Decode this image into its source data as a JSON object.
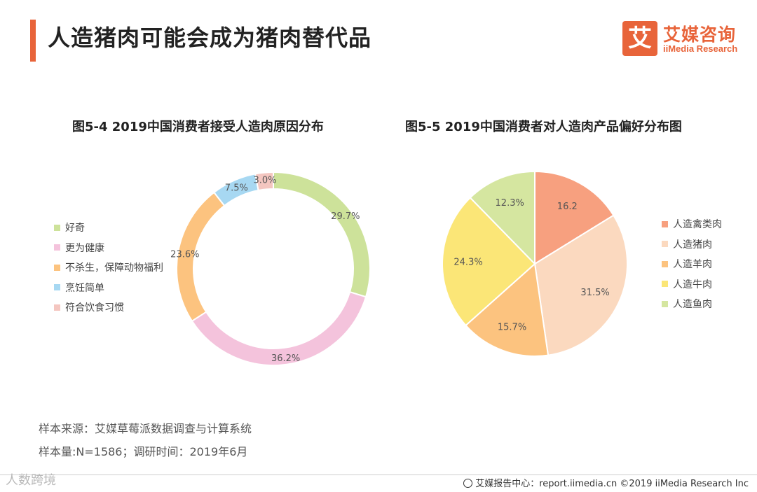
{
  "header": {
    "title": "人造猪肉可能会成为猪肉替代品",
    "logo_mark": "艾",
    "logo_name": "艾媒咨询",
    "logo_sub": "iiMedia Research",
    "accent_color": "#e8643a"
  },
  "chart_data": [
    {
      "type": "pie",
      "variant": "donut",
      "title": "图5-4 2019中国消费者接受人造肉原因分布",
      "categories": [
        "好奇",
        "更为健康",
        "不杀生，保障动物福利",
        "烹饪简单",
        "符合饮食习惯"
      ],
      "values": [
        29.7,
        36.2,
        23.6,
        7.5,
        3.0
      ],
      "labels": [
        "29.7%",
        "36.2%",
        "23.6%",
        "7.5%",
        "3.0%"
      ],
      "colors": [
        "#cde29a",
        "#f4c3dc",
        "#fcc37f",
        "#a7d8f2",
        "#f4c6c0"
      ],
      "legend_position": "left"
    },
    {
      "type": "pie",
      "title": "图5-5 2019中国消费者对人造肉产品偏好分布图",
      "categories": [
        "人造禽类肉",
        "人造猪肉",
        "人造羊肉",
        "人造牛肉",
        "人造鱼肉"
      ],
      "values": [
        16.2,
        31.5,
        15.7,
        24.3,
        12.3
      ],
      "labels": [
        "16.2",
        "31.5%",
        "15.7%",
        "24.3%",
        "12.3%"
      ],
      "colors": [
        "#f7a07f",
        "#fbd9bf",
        "#fcc37f",
        "#fbe677",
        "#d5e6a0"
      ],
      "legend_position": "right"
    }
  ],
  "source": {
    "line1": "样本来源：艾媒草莓派数据调查与计算系统",
    "line2": "样本量:N=1586；调研时间：2019年6月"
  },
  "footer": {
    "text": "艾媒报告中心：report.iimedia.cn  ©2019  iiMedia Research  Inc"
  },
  "watermark": "人数跨境"
}
